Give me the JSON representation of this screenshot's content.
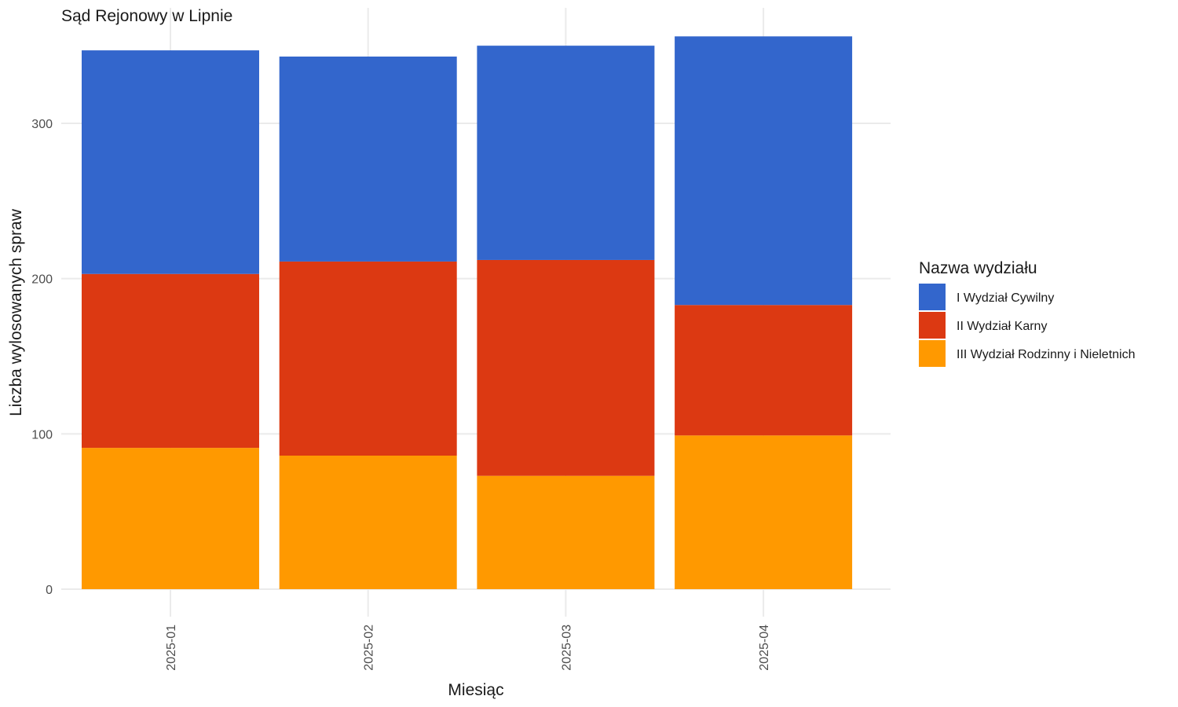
{
  "chart_data": {
    "type": "bar",
    "stacked": true,
    "title": "Sąd Rejonowy w Lipnie",
    "xlabel": "Miesiąc",
    "ylabel": "Liczba wylosowanych spraw",
    "categories": [
      "2025-01",
      "2025-02",
      "2025-03",
      "2025-04"
    ],
    "ylim": [
      0,
      360
    ],
    "yticks": [
      0,
      100,
      200,
      300
    ],
    "grid": true,
    "legend": {
      "title": "Nazwa wydziału",
      "position": "right"
    },
    "series": [
      {
        "name": "III Wydział Rodzinny i Nieletnich",
        "color": "#FF9900",
        "values": [
          91,
          86,
          73,
          99
        ]
      },
      {
        "name": "II Wydział Karny",
        "color": "#DC3912",
        "values": [
          112,
          125,
          139,
          84
        ]
      },
      {
        "name": "I Wydział Cywilny",
        "color": "#3366CC",
        "values": [
          144,
          132,
          138,
          173
        ]
      }
    ],
    "legend_order": [
      "I Wydział Cywilny",
      "II Wydział Karny",
      "III Wydział Rodzinny i Nieletnich"
    ]
  }
}
